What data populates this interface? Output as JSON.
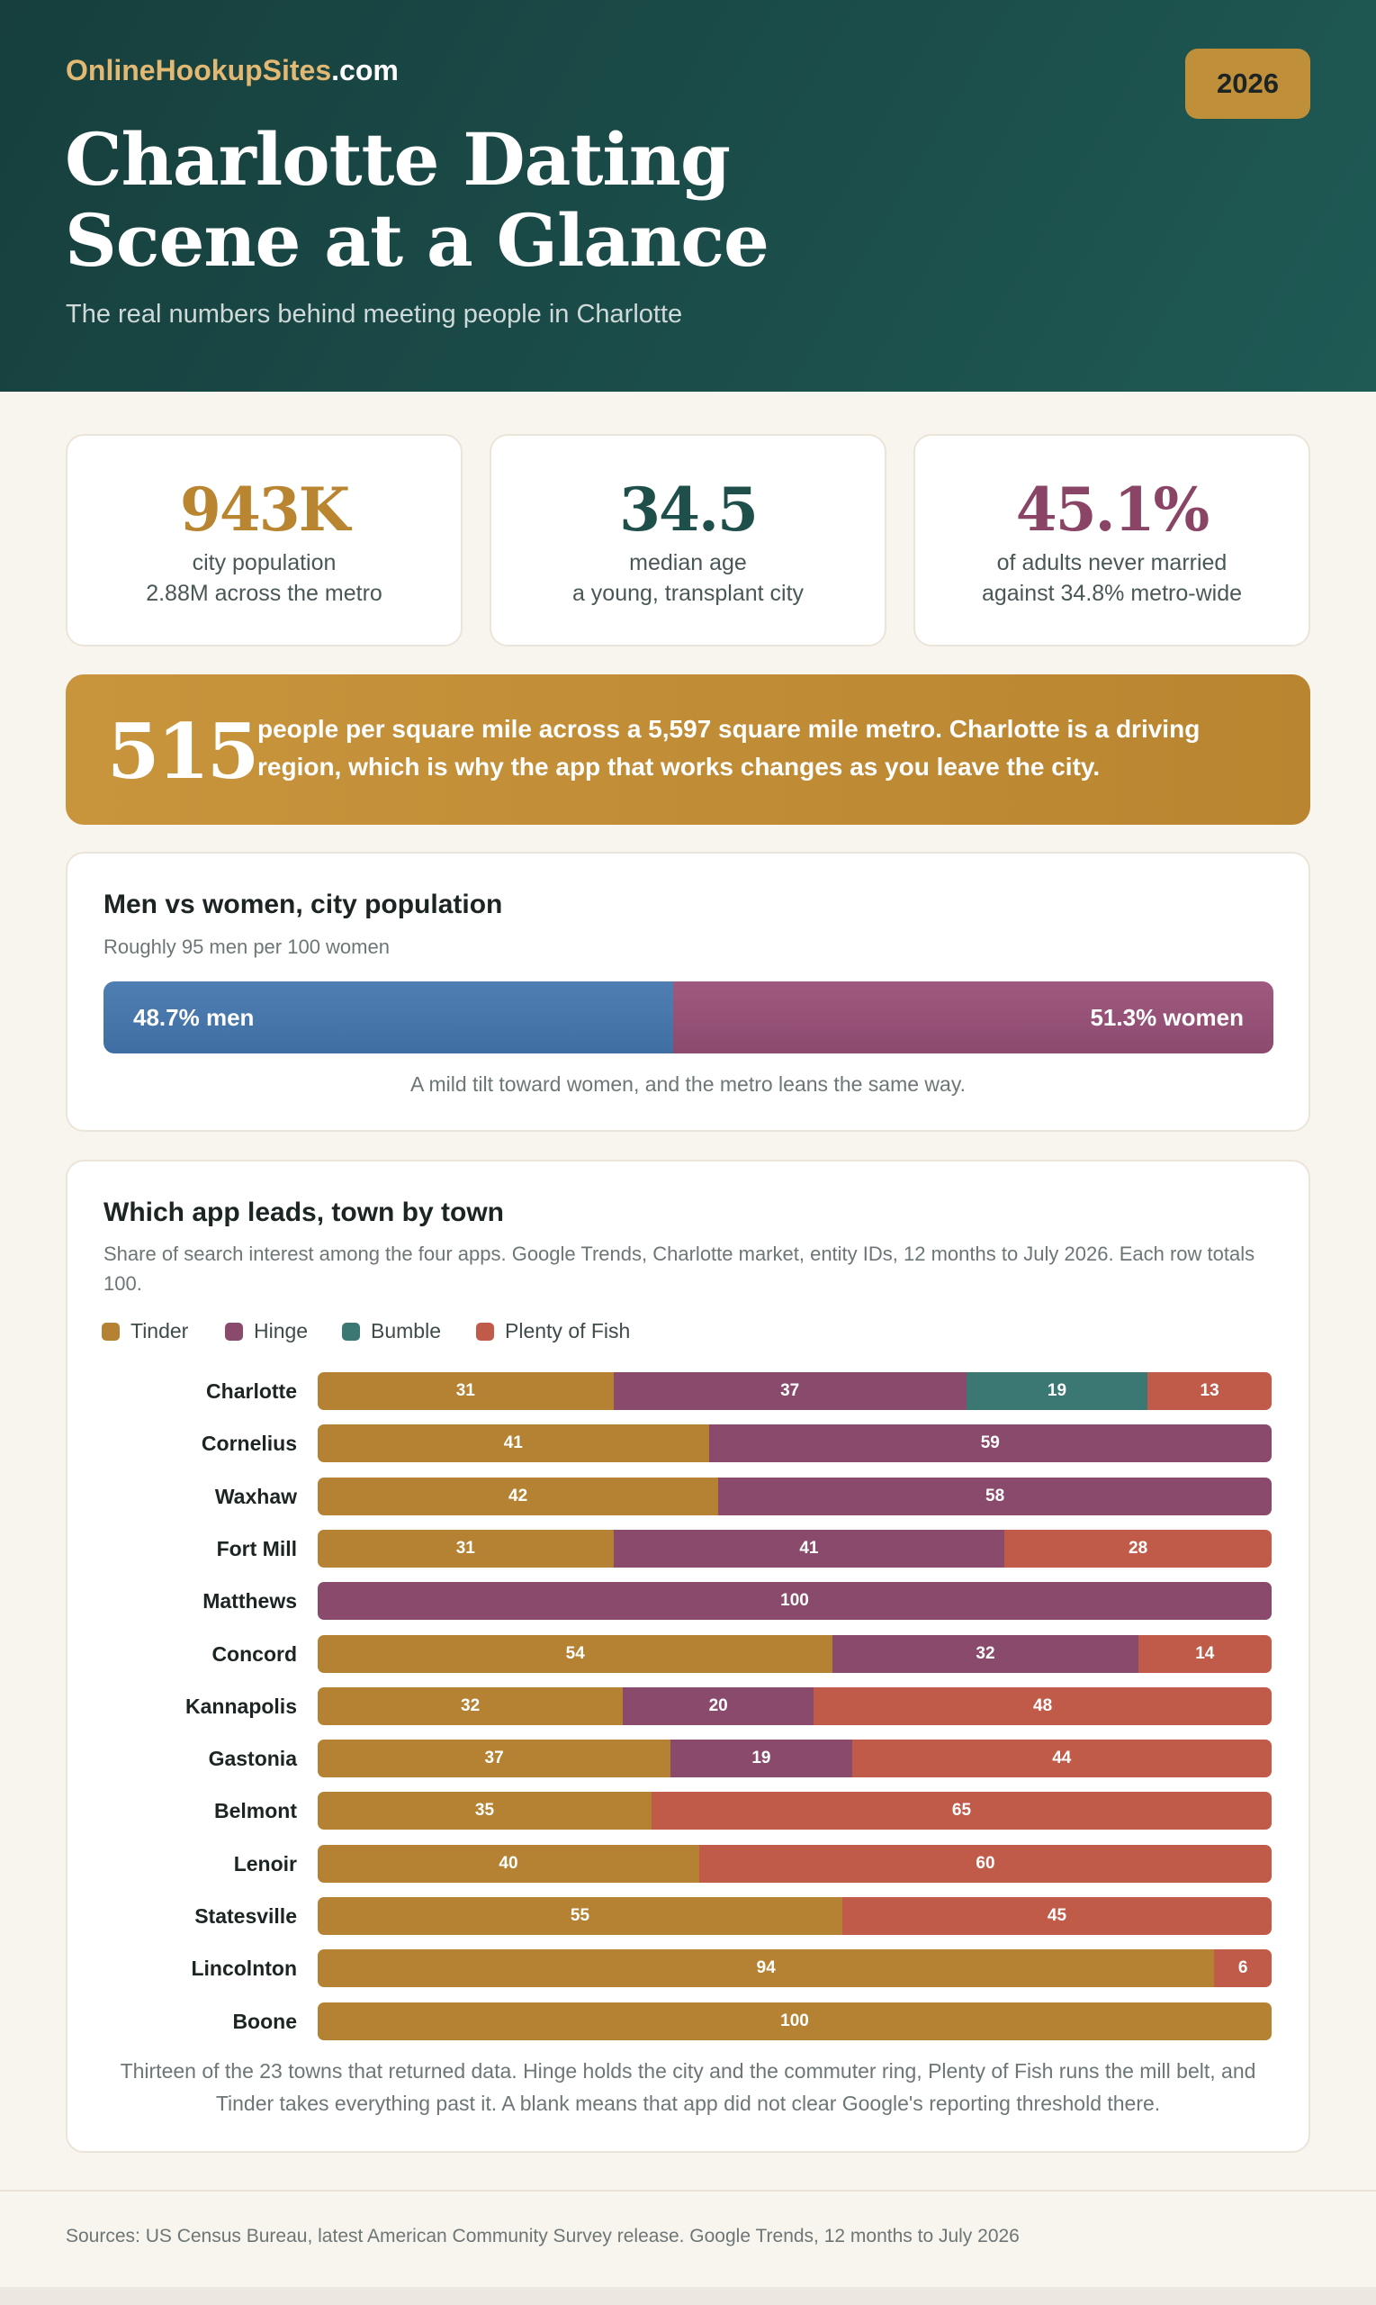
{
  "header": {
    "brand_name": "OnlineHookupSites",
    "brand_tld": ".com",
    "year": "2026",
    "title_line1": "Charlotte Dating",
    "title_line2": "Scene at a Glance",
    "subtitle": "The real numbers behind meeting people in Charlotte"
  },
  "stats": [
    {
      "value": "943K",
      "label": "city population",
      "detail": "2.88M across the metro",
      "color": "#b98530"
    },
    {
      "value": "34.5",
      "label": "median age",
      "detail": "a young, transplant city",
      "color": "#1e4f4b"
    },
    {
      "value": "45.1%",
      "label": "of adults never married",
      "detail": "against 34.8% metro-wide",
      "color": "#8a4466"
    }
  ],
  "density": {
    "value": "515",
    "text": "people per square mile across a 5,597 square mile metro. Charlotte is a driving region, which is why the app that works changes as you leave the city."
  },
  "gender": {
    "title": "Men vs women, city population",
    "subtitle": "Roughly 95 men per 100 women",
    "men_pct": 48.7,
    "women_pct": 51.3,
    "men_label": "48.7% men",
    "women_label": "51.3% women",
    "note": "A mild tilt toward women, and the metro leans the same way."
  },
  "apps_panel": {
    "title": "Which app leads, town by town",
    "subtitle": "Share of search interest among the four apps. Google Trends, Charlotte market, entity IDs, 12 months to July 2026. Each row totals 100.",
    "note": "Thirteen of the 23 towns that returned data. Hinge holds the city and the commuter ring, Plenty of Fish runs the mill belt, and Tinder takes everything past it. A blank means that app did not clear Google's reporting threshold there."
  },
  "chart_data": {
    "type": "bar",
    "orientation": "horizontal",
    "stacked": true,
    "categories": [
      "Charlotte",
      "Cornelius",
      "Waxhaw",
      "Fort Mill",
      "Matthews",
      "Concord",
      "Kannapolis",
      "Gastonia",
      "Belmont",
      "Lenoir",
      "Statesville",
      "Lincolnton",
      "Boone"
    ],
    "series": [
      {
        "name": "Tinder",
        "color": "#b48232",
        "values": [
          31,
          41,
          42,
          31,
          null,
          54,
          32,
          37,
          35,
          40,
          55,
          94,
          100
        ]
      },
      {
        "name": "Hinge",
        "color": "#8a4a6c",
        "values": [
          37,
          59,
          58,
          41,
          100,
          32,
          20,
          19,
          null,
          null,
          null,
          null,
          null
        ]
      },
      {
        "name": "Bumble",
        "color": "#3b7773",
        "values": [
          19,
          null,
          null,
          null,
          null,
          null,
          null,
          null,
          null,
          null,
          null,
          null,
          null
        ]
      },
      {
        "name": "Plenty of Fish",
        "color": "#c05b4a",
        "values": [
          13,
          null,
          null,
          28,
          null,
          14,
          48,
          44,
          65,
          60,
          45,
          6,
          null
        ]
      }
    ],
    "xlim": [
      0,
      100
    ],
    "legend": "top-left",
    "grid": false
  },
  "footer": {
    "sources": "Sources: US Census Bureau, latest American Community Survey release. Google Trends, 12 months to July 2026"
  }
}
